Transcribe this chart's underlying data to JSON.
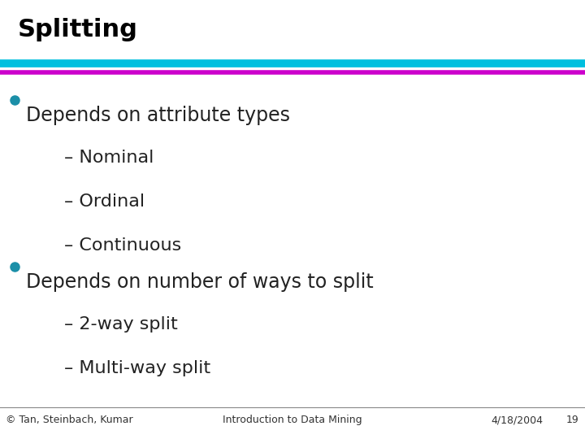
{
  "title": "Splitting",
  "title_color": "#000000",
  "title_fontsize": 22,
  "title_bold": true,
  "bg_color": "#ffffff",
  "line1_color": "#00BFDF",
  "line2_color": "#CC00CC",
  "bullet_color": "#1B8FA8",
  "bullet1_text": "Depends on attribute types",
  "bullet1_subs": [
    "– Nominal",
    "– Ordinal",
    "– Continuous"
  ],
  "bullet2_text": "Depends on number of ways to split",
  "bullet2_subs": [
    "– 2-way split",
    "– Multi-way split"
  ],
  "footer_left": "© Tan, Steinbach, Kumar",
  "footer_center": "Introduction to Data Mining",
  "footer_right": "4/18/2004",
  "footer_page": "19",
  "footer_fontsize": 9,
  "content_fontsize": 17,
  "sub_fontsize": 16
}
